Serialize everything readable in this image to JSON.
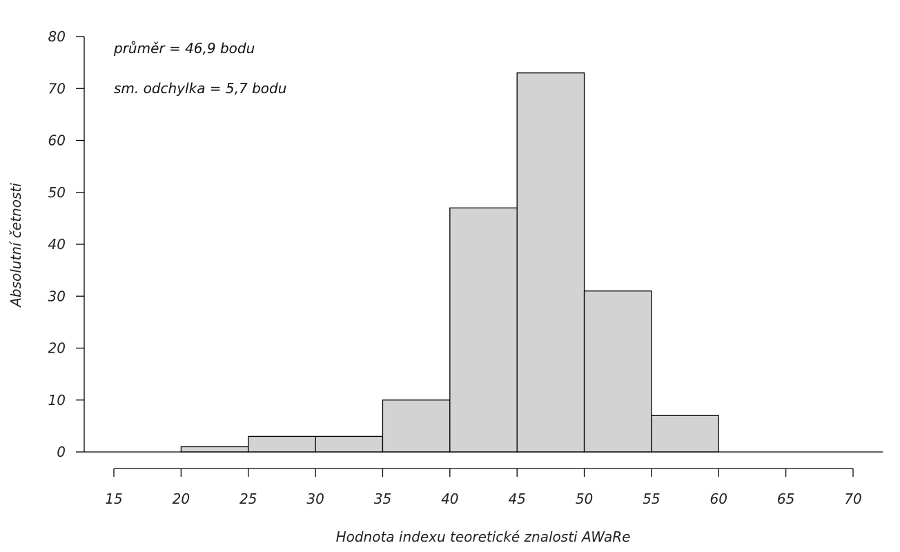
{
  "chart_data": {
    "type": "bar",
    "subtype": "histogram",
    "bins": [
      {
        "from": 15,
        "to": 20,
        "count": 0
      },
      {
        "from": 20,
        "to": 25,
        "count": 1
      },
      {
        "from": 25,
        "to": 30,
        "count": 3
      },
      {
        "from": 30,
        "to": 35,
        "count": 3
      },
      {
        "from": 35,
        "to": 40,
        "count": 10
      },
      {
        "from": 40,
        "to": 45,
        "count": 47
      },
      {
        "from": 45,
        "to": 50,
        "count": 73
      },
      {
        "from": 50,
        "to": 55,
        "count": 31
      },
      {
        "from": 55,
        "to": 60,
        "count": 7
      },
      {
        "from": 60,
        "to": 65,
        "count": 0
      },
      {
        "from": 65,
        "to": 70,
        "count": 0
      }
    ],
    "xlabel": "Hodnota indexu teoretické znalosti AWaRe",
    "ylabel": "Absolutní četnosti",
    "xlim": [
      15,
      70
    ],
    "ylim": [
      0,
      80
    ],
    "x_ticks": [
      "15",
      "20",
      "25",
      "30",
      "35",
      "40",
      "45",
      "50",
      "55",
      "60",
      "65",
      "70"
    ],
    "y_ticks": [
      "0",
      "10",
      "20",
      "30",
      "40",
      "50",
      "60",
      "70",
      "80"
    ],
    "annotations": [
      "průměr = 46,9 bodu",
      "sm. odchylka = 5,7 bodu"
    ],
    "bar_color": "#d3d3d3",
    "edge_color": "#000000",
    "grid": false
  }
}
